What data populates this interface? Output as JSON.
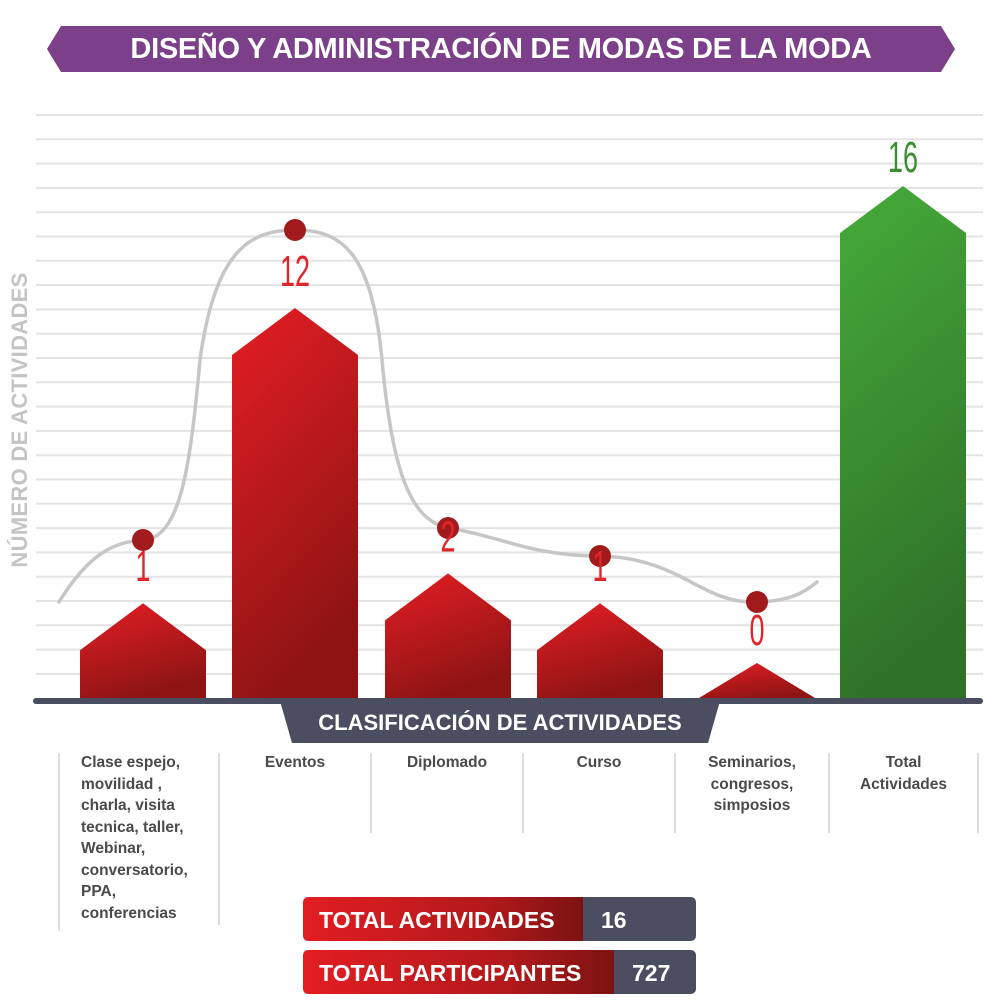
{
  "title": "DISEÑO Y ADMINISTRACIÓN DE MODAS DE LA MODA",
  "colors": {
    "title_banner": "#7c3f8a",
    "bar_red_top": "#e41e24",
    "bar_red_bottom": "#8e1414",
    "bar_green_top": "#45ab39",
    "bar_green_bottom": "#2f7128",
    "axis_dark": "#4b4d60",
    "dot": "#a11a1c",
    "curve": "#c6c6c6",
    "grid": "#e3e3e3",
    "label_red": "#e0242a",
    "label_green": "#3a8f30"
  },
  "chart_data": {
    "type": "bar",
    "title": "DISEÑO Y ADMINISTRACIÓN DE MODAS DE LA MODA",
    "xlabel": "CLASIFICACIÓN  DE ACTIVIDADES",
    "ylabel": "NÚMERO DE ACTIVIDADES",
    "categories": [
      "Clase espejo, movilidad , charla, visita tecnica, taller, Webinar, conversatorio, PPA, conferencias",
      "Eventos",
      "Diplomado",
      "Curso",
      "Seminarios, congresos, simposios",
      "Total Actividades"
    ],
    "category_lines": [
      [
        "Clase espejo,",
        "movilidad ,",
        "charla, visita",
        "tecnica, taller,",
        "Webinar,",
        "conversatorio,",
        "PPA,",
        "conferencias"
      ],
      [
        "Eventos"
      ],
      [
        "Diplomado"
      ],
      [
        "Curso"
      ],
      [
        "Seminarios,",
        "congresos,",
        "simposios"
      ],
      [
        "Total",
        "Actividades"
      ]
    ],
    "values": [
      1,
      12,
      2,
      1,
      0,
      16
    ],
    "data_labels": [
      "1",
      "12",
      "2",
      "1",
      "0",
      "16"
    ],
    "highlight_index": 5,
    "trend_line": true,
    "grid": true,
    "ylim": [
      0,
      16
    ]
  },
  "x_axis_banner": "CLASIFICACIÓN  DE ACTIVIDADES",
  "totals": {
    "activities_label": "TOTAL ACTIVIDADES",
    "activities_value": "16",
    "participants_label": "TOTAL PARTICIPANTES",
    "participants_value": "727"
  }
}
